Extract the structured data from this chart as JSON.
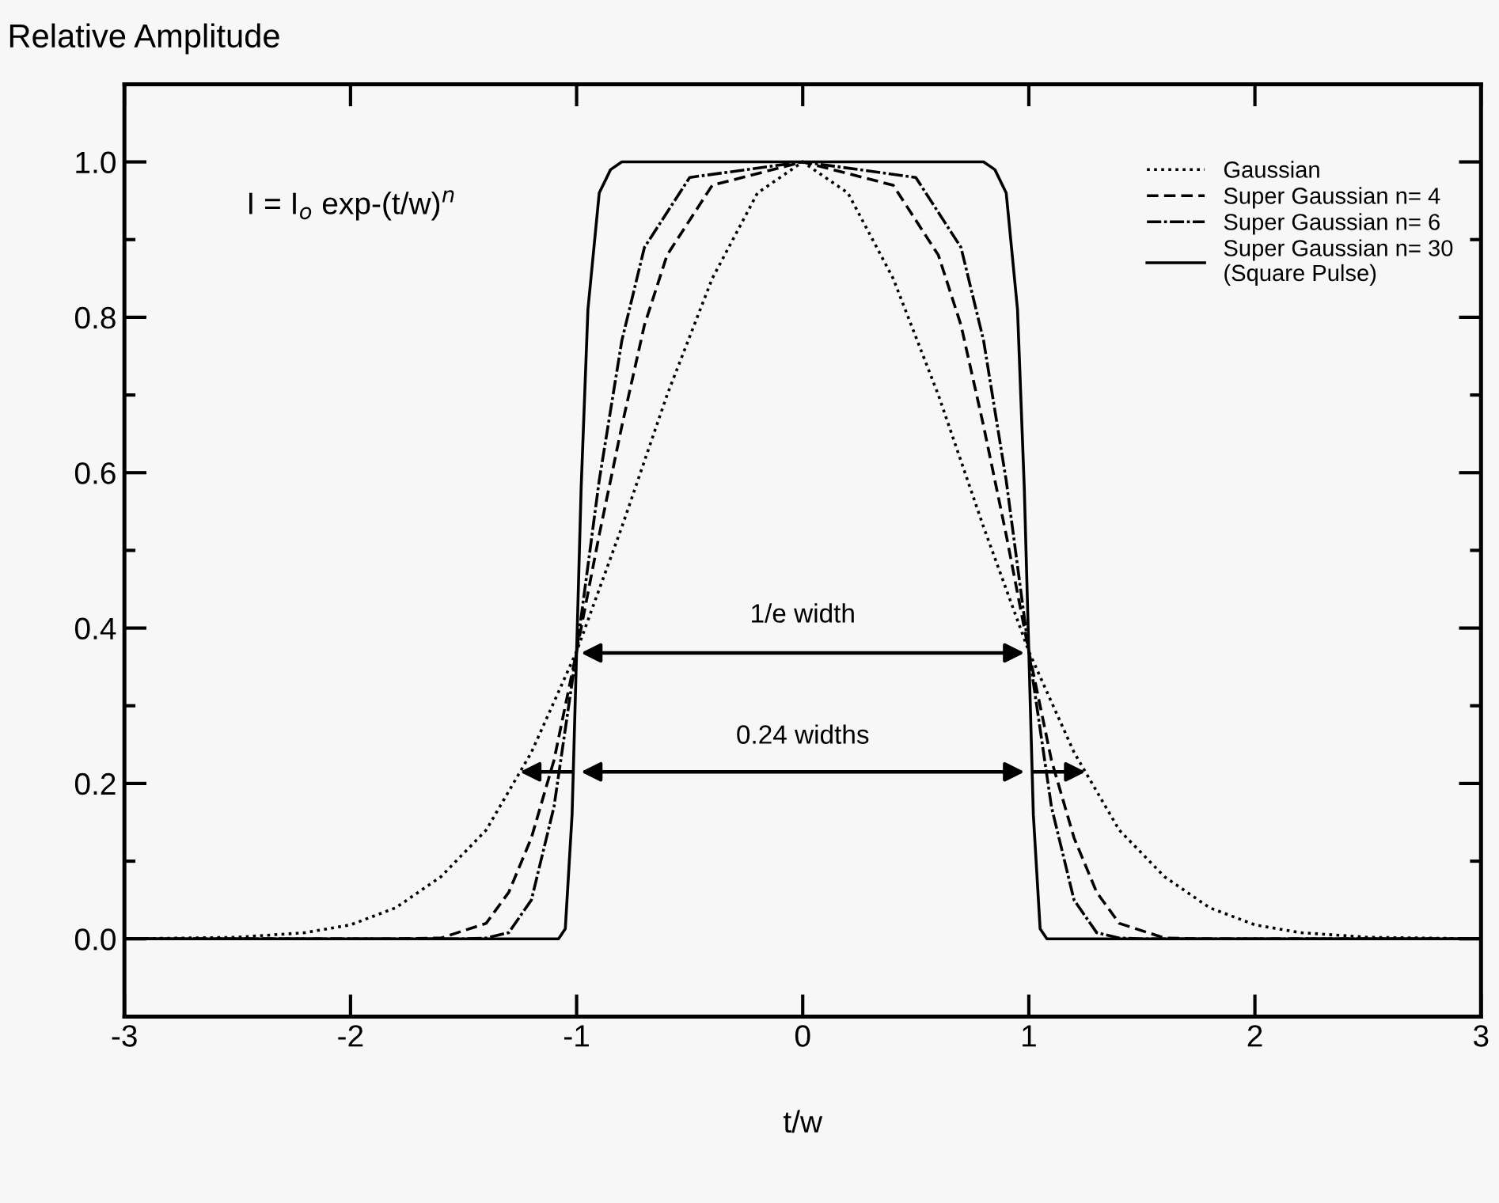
{
  "chart_data": {
    "type": "line",
    "xlabel": "t/w",
    "ylabel": "Relative Amplitude",
    "xlim": [
      -3,
      3
    ],
    "ylim": [
      -0.1,
      1.1
    ],
    "xticks": [
      -3,
      -2,
      -1,
      0,
      1,
      2,
      3
    ],
    "yticks": [
      {
        "value": 0,
        "label": "0.0"
      },
      0.2,
      0.4,
      0.6,
      0.8,
      {
        "value": 1,
        "label": "1.0"
      },
      {
        "value": -0.1,
        "label": null
      },
      {
        "value": 0.1,
        "label": null
      },
      {
        "value": 0.3,
        "label": null
      },
      {
        "value": 0.5,
        "label": null
      },
      {
        "value": 0.7,
        "label": null
      },
      {
        "value": 0.9,
        "label": null
      },
      {
        "value": 1.1,
        "label": null
      }
    ],
    "grid": false,
    "legend": "top right",
    "marker": "none",
    "series": [
      {
        "name": "Gaussian",
        "color": "#000000",
        "line_style": "dotted",
        "x": [
          -3,
          -2.5,
          -2.2,
          -2,
          -1.8,
          -1.6,
          -1.4,
          -1.2,
          -1,
          -0.8,
          -0.6,
          -0.4,
          -0.2,
          0,
          0.2,
          0.4,
          0.6,
          0.8,
          1,
          1.2,
          1.4,
          1.6,
          1.8,
          2,
          2.2,
          2.5,
          3
        ],
        "values": [
          0,
          0.002,
          0.008,
          0.018,
          0.04,
          0.08,
          0.14,
          0.24,
          0.37,
          0.53,
          0.7,
          0.85,
          0.96,
          1.0,
          0.96,
          0.85,
          0.7,
          0.53,
          0.37,
          0.24,
          0.14,
          0.08,
          0.04,
          0.018,
          0.008,
          0.002,
          0
        ]
      },
      {
        "name": "Super Gaussian n= 4",
        "color": "#000000",
        "line_style": "dashed",
        "x": [
          -3,
          -1.8,
          -1.6,
          -1.4,
          -1.3,
          -1.2,
          -1.1,
          -1,
          -0.9,
          -0.8,
          -0.7,
          -0.6,
          -0.4,
          0,
          0.4,
          0.6,
          0.7,
          0.8,
          0.9,
          1,
          1.1,
          1.2,
          1.3,
          1.4,
          1.6,
          1.8,
          3
        ],
        "values": [
          0,
          0,
          0.001,
          0.02,
          0.06,
          0.13,
          0.23,
          0.37,
          0.52,
          0.66,
          0.79,
          0.88,
          0.97,
          1.0,
          0.97,
          0.88,
          0.79,
          0.66,
          0.52,
          0.37,
          0.23,
          0.13,
          0.06,
          0.02,
          0.001,
          0,
          0
        ]
      },
      {
        "name": "Super Gaussian n= 6",
        "color": "#000000",
        "line_style": "dashdot",
        "x": [
          -3,
          -1.5,
          -1.4,
          -1.3,
          -1.2,
          -1.1,
          -1,
          -0.9,
          -0.8,
          -0.7,
          -0.5,
          0,
          0.5,
          0.7,
          0.8,
          0.9,
          1,
          1.1,
          1.2,
          1.3,
          1.4,
          1.5,
          3
        ],
        "values": [
          0,
          0,
          0.001,
          0.008,
          0.05,
          0.17,
          0.37,
          0.59,
          0.77,
          0.89,
          0.98,
          1.0,
          0.98,
          0.89,
          0.77,
          0.59,
          0.37,
          0.17,
          0.05,
          0.008,
          0.001,
          0,
          0
        ]
      },
      {
        "name": "Super Gaussian n= 30\n(Square Pulse)",
        "color": "#000000",
        "line_style": "solid",
        "x": [
          -3,
          -1.08,
          -1.05,
          -1.02,
          -1,
          -0.98,
          -0.95,
          -0.9,
          -0.85,
          -0.8,
          0,
          0.8,
          0.85,
          0.9,
          0.95,
          0.98,
          1,
          1.02,
          1.05,
          1.08,
          3
        ],
        "values": [
          0,
          0,
          0.013,
          0.16,
          0.37,
          0.58,
          0.81,
          0.96,
          0.99,
          1.0,
          1.0,
          1.0,
          0.99,
          0.96,
          0.81,
          0.58,
          0.37,
          0.16,
          0.013,
          0,
          0
        ]
      }
    ],
    "annotations": [
      "I = I$_{o}$ exp-(t/w)$^{n}$",
      "1/e width",
      "0.24 widths"
    ]
  }
}
